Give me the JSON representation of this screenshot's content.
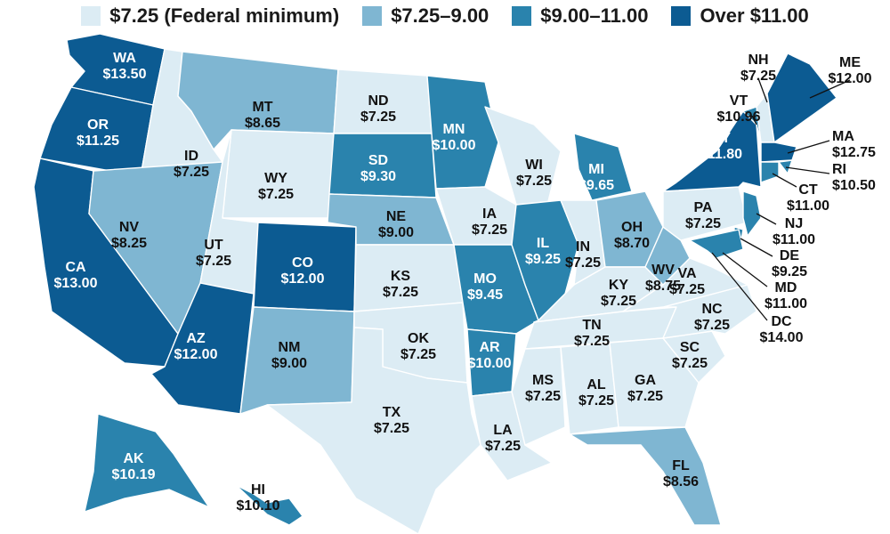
{
  "legend": {
    "items": [
      {
        "label": "$7.25 (Federal minimum)",
        "color": "#dcecf4"
      },
      {
        "label": "$7.25–9.00",
        "color": "#7fb6d2"
      },
      {
        "label": "$9.00–11.00",
        "color": "#2a83ad"
      },
      {
        "label": "Over $11.00",
        "color": "#0c5b92"
      }
    ]
  },
  "states": [
    {
      "abbr": "WA",
      "wage": "$13.50",
      "tier": 3
    },
    {
      "abbr": "OR",
      "wage": "$11.25",
      "tier": 3
    },
    {
      "abbr": "CA",
      "wage": "$13.00",
      "tier": 3
    },
    {
      "abbr": "ID",
      "wage": "$7.25",
      "tier": 0
    },
    {
      "abbr": "NV",
      "wage": "$8.25",
      "tier": 1
    },
    {
      "abbr": "MT",
      "wage": "$8.65",
      "tier": 1
    },
    {
      "abbr": "WY",
      "wage": "$7.25",
      "tier": 0
    },
    {
      "abbr": "UT",
      "wage": "$7.25",
      "tier": 0
    },
    {
      "abbr": "AZ",
      "wage": "$12.00",
      "tier": 3
    },
    {
      "abbr": "CO",
      "wage": "$12.00",
      "tier": 3
    },
    {
      "abbr": "NM",
      "wage": "$9.00",
      "tier": 1
    },
    {
      "abbr": "ND",
      "wage": "$7.25",
      "tier": 0
    },
    {
      "abbr": "SD",
      "wage": "$9.30",
      "tier": 2
    },
    {
      "abbr": "NE",
      "wage": "$9.00",
      "tier": 1
    },
    {
      "abbr": "KS",
      "wage": "$7.25",
      "tier": 0
    },
    {
      "abbr": "OK",
      "wage": "$7.25",
      "tier": 0
    },
    {
      "abbr": "TX",
      "wage": "$7.25",
      "tier": 0
    },
    {
      "abbr": "MN",
      "wage": "$10.00",
      "tier": 2
    },
    {
      "abbr": "IA",
      "wage": "$7.25",
      "tier": 0
    },
    {
      "abbr": "MO",
      "wage": "$9.45",
      "tier": 2
    },
    {
      "abbr": "AR",
      "wage": "$10.00",
      "tier": 2
    },
    {
      "abbr": "LA",
      "wage": "$7.25",
      "tier": 0
    },
    {
      "abbr": "WI",
      "wage": "$7.25",
      "tier": 0
    },
    {
      "abbr": "IL",
      "wage": "$9.25",
      "tier": 2
    },
    {
      "abbr": "MI",
      "wage": "$9.65",
      "tier": 2
    },
    {
      "abbr": "IN",
      "wage": "$7.25",
      "tier": 0
    },
    {
      "abbr": "OH",
      "wage": "$8.70",
      "tier": 1
    },
    {
      "abbr": "KY",
      "wage": "$7.25",
      "tier": 0
    },
    {
      "abbr": "TN",
      "wage": "$7.25",
      "tier": 0
    },
    {
      "abbr": "MS",
      "wage": "$7.25",
      "tier": 0
    },
    {
      "abbr": "AL",
      "wage": "$7.25",
      "tier": 0
    },
    {
      "abbr": "GA",
      "wage": "$7.25",
      "tier": 0
    },
    {
      "abbr": "FL",
      "wage": "$8.56",
      "tier": 1
    },
    {
      "abbr": "SC",
      "wage": "$7.25",
      "tier": 0
    },
    {
      "abbr": "NC",
      "wage": "$7.25",
      "tier": 0
    },
    {
      "abbr": "VA",
      "wage": "$7.25",
      "tier": 0
    },
    {
      "abbr": "WV",
      "wage": "$8.75",
      "tier": 1
    },
    {
      "abbr": "PA",
      "wage": "$7.25",
      "tier": 0
    },
    {
      "abbr": "NY",
      "wage": "$11.80",
      "tier": 3
    },
    {
      "abbr": "VT",
      "wage": "$10.96",
      "tier": 2
    },
    {
      "abbr": "NH",
      "wage": "$7.25",
      "tier": 0
    },
    {
      "abbr": "ME",
      "wage": "$12.00",
      "tier": 3
    },
    {
      "abbr": "MA",
      "wage": "$12.75",
      "tier": 3
    },
    {
      "abbr": "RI",
      "wage": "$10.50",
      "tier": 2
    },
    {
      "abbr": "CT",
      "wage": "$11.00",
      "tier": 2
    },
    {
      "abbr": "NJ",
      "wage": "$11.00",
      "tier": 2
    },
    {
      "abbr": "DE",
      "wage": "$9.25",
      "tier": 2
    },
    {
      "abbr": "MD",
      "wage": "$11.00",
      "tier": 2
    },
    {
      "abbr": "DC",
      "wage": "$14.00",
      "tier": 3
    },
    {
      "abbr": "AK",
      "wage": "$10.19",
      "tier": 2
    },
    {
      "abbr": "HI",
      "wage": "$10.10",
      "tier": 2
    }
  ]
}
